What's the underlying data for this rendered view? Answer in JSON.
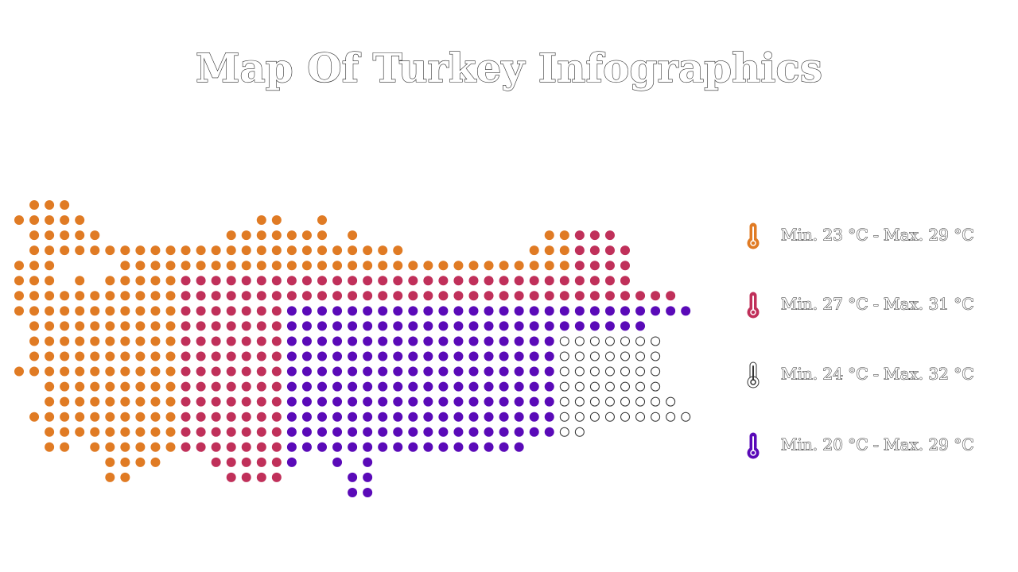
{
  "title": "Map Of Turkey Infographics",
  "legend": [
    {
      "label": "Min. 23 °C - Max. 29 °C",
      "color": "#e07b24"
    },
    {
      "label": "Min. 27 °C - Max. 31 °C",
      "color": "#c0305a"
    },
    {
      "label": "Min. 24 °C - Max. 32 °C",
      "color": "#ffffff"
    },
    {
      "label": "Min. 20 °C - Max. 29 °C",
      "color": "#5a0ab8"
    }
  ]
}
